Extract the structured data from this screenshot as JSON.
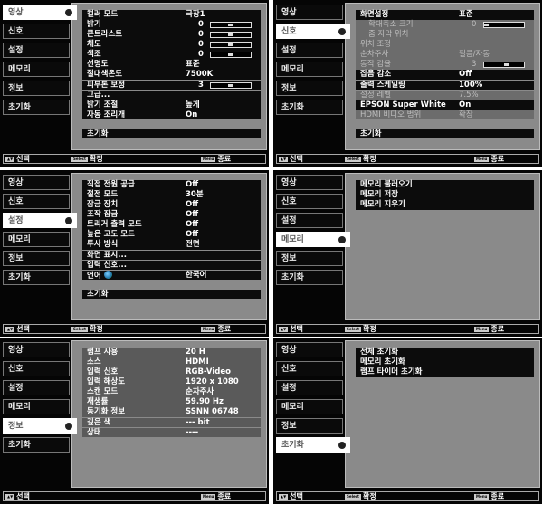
{
  "tabs": [
    "영상",
    "신호",
    "설정",
    "메모리",
    "정보",
    "초기화"
  ],
  "footer": {
    "select": "선택",
    "confirm": "확정",
    "exit": "종료",
    "select_key": "▲▼",
    "confirm_key": "Select",
    "exit_key": "Menu"
  },
  "panels": [
    {
      "active": 0,
      "reset": "초기화",
      "rows": [
        {
          "label": "컬러 모드",
          "value": "극장1"
        },
        {
          "label": "밝기",
          "num": "0",
          "slider": 0.5
        },
        {
          "label": "콘트라스트",
          "num": "0",
          "slider": 0.5
        },
        {
          "label": "채도",
          "num": "0",
          "slider": 0.5
        },
        {
          "label": "색조",
          "num": "0",
          "slider": 0.5
        },
        {
          "label": "선명도",
          "value": "표준"
        },
        {
          "label": "절대색온도",
          "value": "7500K"
        },
        {
          "label": "피부톤 보정",
          "num": "3",
          "slider": 0.5
        },
        {
          "label": "고급..."
        },
        {
          "label": "밝기 조절",
          "value": "높게"
        },
        {
          "label": "자동 조리개",
          "value": "On"
        }
      ]
    },
    {
      "active": 1,
      "reset": "초기화",
      "rows": [
        {
          "label": "화면설정",
          "value": "표준"
        },
        {
          "label": "확대축소 크기",
          "num": "0",
          "slider": 0.0,
          "dim": true,
          "indent": true
        },
        {
          "label": "줌 자막 위치",
          "dim": true,
          "indent": true
        },
        {
          "label": "위치 조정",
          "dim": true
        },
        {
          "label": "순차주사",
          "value": "필름/자동",
          "dim": true
        },
        {
          "label": "동작 감율",
          "num": "3",
          "slider": 0.6,
          "dim": true
        },
        {
          "label": "잡음 감소",
          "value": "Off"
        },
        {
          "label": "출력 스케일링",
          "value": "100%"
        },
        {
          "label": "설정 레벨",
          "value": "7.5%",
          "dim": true
        },
        {
          "label": "EPSON Super White",
          "value": "On"
        },
        {
          "label": "HDMI 비디오 범위",
          "value": "확장",
          "dim": true
        }
      ]
    },
    {
      "active": 2,
      "reset": "초기화",
      "rows": [
        {
          "label": "직접 전원 공급",
          "value": "Off"
        },
        {
          "label": "절전 모드",
          "value": "30분"
        },
        {
          "label": "잠금 장치",
          "value": "Off"
        },
        {
          "label": "조작 잠금",
          "value": "Off"
        },
        {
          "label": "트리거 출력 모드",
          "value": "Off"
        },
        {
          "label": "높은 고도 모드",
          "value": "Off"
        },
        {
          "label": "투사 방식",
          "value": "전면"
        },
        {
          "label": "화면 표시..."
        },
        {
          "label": "입력 신호..."
        },
        {
          "label": "언어",
          "value": "한국어",
          "globe": true
        }
      ]
    },
    {
      "active": 3,
      "rows": [
        {
          "label": "메모리 불러오기"
        },
        {
          "label": "메모리 저장"
        },
        {
          "label": "메모리 지우기"
        }
      ]
    },
    {
      "active": 4,
      "info": true,
      "rows": [
        {
          "label": "램프 사용",
          "value": "20 H"
        },
        {
          "label": "소스",
          "value": "HDMI"
        },
        {
          "label": "입력 신호",
          "value": "RGB-Video"
        },
        {
          "label": "입력 해상도",
          "value": "1920 x 1080"
        },
        {
          "label": "스캔 모드",
          "value": "순차주사"
        },
        {
          "label": "재생률",
          "value": "59.90 Hz"
        },
        {
          "label": "동기화 정보",
          "value": "SSNN 06748"
        },
        {
          "label": "깊은 색",
          "value": "--- bit"
        },
        {
          "label": "상태",
          "value": "----"
        }
      ]
    },
    {
      "active": 5,
      "rows": [
        {
          "label": "전체 초기화"
        },
        {
          "label": "메모리 초기화"
        },
        {
          "label": "램프 타이머 초기화"
        }
      ]
    }
  ]
}
